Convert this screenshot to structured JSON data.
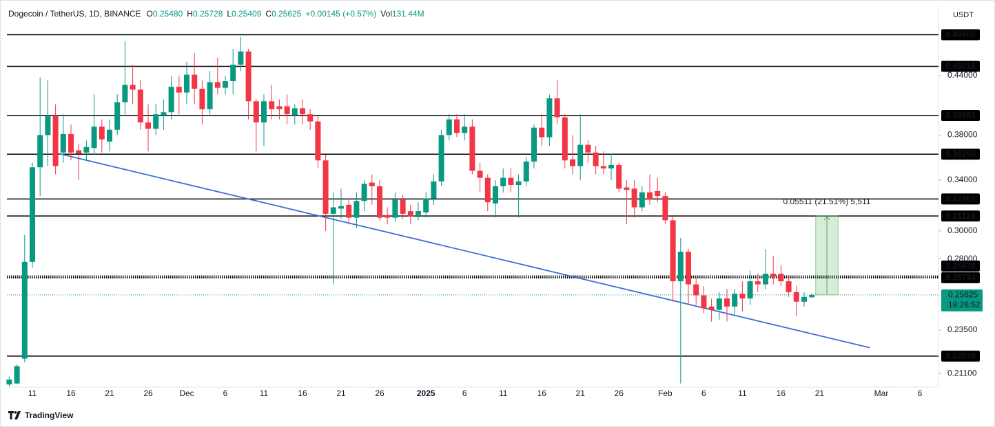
{
  "chart_data": {
    "type": "candlestick",
    "header": {
      "symbol": "Dogecoin / TetherUS, 1D, BINANCE",
      "fields": [
        {
          "key": "O",
          "text": "0.25480"
        },
        {
          "key": "H",
          "text": "0.25728"
        },
        {
          "key": "L",
          "text": "0.25409"
        },
        {
          "key": "C",
          "text": "0.25625"
        },
        {
          "key": "",
          "text": "+0.00145 (+0.57%)"
        },
        {
          "key": "Vol",
          "text": "131.44M"
        }
      ]
    },
    "currency": "USDT",
    "brand": "TradingView",
    "categories": [
      null,
      null,
      null,
      "11",
      null,
      null,
      null,
      null,
      "16",
      null,
      null,
      null,
      null,
      "21",
      null,
      null,
      null,
      null,
      "26",
      null,
      null,
      null,
      null,
      "Dec",
      null,
      null,
      null,
      null,
      "6",
      null,
      null,
      null,
      null,
      "11",
      null,
      null,
      null,
      null,
      "16",
      null,
      null,
      null,
      null,
      "21",
      null,
      null,
      null,
      null,
      "26",
      null,
      null,
      null,
      null,
      null,
      "2025",
      null,
      null,
      null,
      null,
      "6",
      null,
      null,
      null,
      null,
      "11",
      null,
      null,
      null,
      null,
      "16",
      null,
      null,
      null,
      null,
      "21",
      null,
      null,
      null,
      null,
      "26",
      null,
      null,
      null,
      null,
      null,
      "Feb",
      null,
      null,
      null,
      null,
      "6",
      null,
      null,
      null,
      null,
      "11",
      null,
      null,
      null,
      null,
      "16",
      null,
      null,
      null,
      null,
      "21",
      null,
      null,
      null,
      null,
      null,
      null,
      null,
      "Mar",
      null,
      null,
      null,
      null,
      "6"
    ],
    "open": [
      0.2055,
      0.206,
      0.219,
      0.278,
      0.351,
      0.38,
      0.398,
      0.364,
      0.381,
      0.366,
      0.364,
      0.368,
      0.388,
      0.374,
      0.385,
      0.412,
      0.43,
      0.425,
      0.392,
      0.386,
      0.399,
      0.402,
      0.428,
      0.422,
      0.441,
      0.426,
      0.405,
      0.433,
      0.427,
      0.434,
      0.452,
      0.467,
      0.413,
      0.392,
      0.413,
      0.408,
      0.408,
      0.399,
      0.406,
      0.4,
      0.393,
      0.357,
      0.313,
      0.317,
      0.32,
      0.31,
      0.323,
      0.338,
      0.335,
      0.312,
      0.31,
      0.324,
      0.315,
      0.312,
      0.314,
      0.325,
      0.339,
      0.38,
      0.395,
      0.382,
      0.388,
      0.348,
      0.342,
      0.321,
      0.335,
      0.342,
      0.336,
      0.339,
      0.356,
      0.387,
      0.378,
      0.416,
      0.397,
      0.358,
      0.352,
      0.371,
      0.364,
      0.352,
      0.35,
      0.353,
      0.334,
      0.333,
      0.318,
      0.33,
      0.331,
      0.327,
      0.308,
      0.265,
      0.285,
      0.263,
      0.256,
      0.249,
      0.247,
      0.254,
      0.249,
      0.257,
      0.254,
      0.265,
      0.263,
      0.27,
      0.27,
      0.265,
      0.258,
      0.252,
      0.2548,
      null,
      null,
      null,
      null,
      null,
      null,
      null,
      null,
      null,
      null,
      null,
      null,
      null,
      null
    ],
    "high": [
      0.2095,
      0.216,
      0.297,
      0.355,
      0.438,
      0.435,
      0.41,
      0.4,
      0.39,
      0.372,
      0.375,
      0.42,
      0.395,
      0.395,
      0.42,
      0.479,
      0.452,
      0.435,
      0.41,
      0.41,
      0.415,
      0.44,
      0.44,
      0.455,
      0.465,
      0.435,
      0.445,
      0.46,
      0.44,
      0.47,
      0.484,
      0.47,
      0.415,
      0.42,
      0.43,
      0.415,
      0.42,
      0.41,
      0.415,
      0.405,
      0.398,
      0.362,
      0.33,
      0.333,
      0.325,
      0.33,
      0.34,
      0.345,
      0.34,
      0.318,
      0.33,
      0.328,
      0.32,
      0.322,
      0.33,
      0.345,
      0.385,
      0.4,
      0.4,
      0.4,
      0.395,
      0.355,
      0.345,
      0.34,
      0.35,
      0.35,
      0.345,
      0.36,
      0.39,
      0.4,
      0.42,
      0.435,
      0.4,
      0.38,
      0.4,
      0.375,
      0.37,
      0.365,
      0.363,
      0.355,
      0.34,
      0.34,
      0.335,
      0.345,
      0.342,
      0.33,
      0.311,
      0.295,
      0.287,
      0.268,
      0.262,
      0.254,
      0.258,
      0.26,
      0.26,
      0.265,
      0.272,
      0.27,
      0.287,
      0.282,
      0.276,
      0.268,
      0.262,
      0.258,
      0.25728,
      null,
      null,
      null,
      null,
      null,
      null,
      null,
      null,
      null,
      null,
      null,
      null,
      null,
      null
    ],
    "low": [
      0.2045,
      0.2055,
      0.217,
      0.274,
      0.327,
      0.352,
      0.345,
      0.355,
      0.357,
      0.34,
      0.357,
      0.362,
      0.364,
      0.365,
      0.38,
      0.4,
      0.41,
      0.385,
      0.365,
      0.38,
      0.385,
      0.395,
      0.4,
      0.41,
      0.41,
      0.39,
      0.4,
      0.42,
      0.42,
      0.42,
      0.445,
      0.395,
      0.365,
      0.37,
      0.395,
      0.395,
      0.39,
      0.39,
      0.39,
      0.385,
      0.35,
      0.3,
      0.263,
      0.309,
      0.305,
      0.302,
      0.315,
      0.32,
      0.308,
      0.305,
      0.307,
      0.309,
      0.305,
      0.308,
      0.31,
      0.32,
      0.335,
      0.375,
      0.378,
      0.375,
      0.345,
      0.33,
      0.315,
      0.31,
      0.33,
      0.33,
      0.31,
      0.335,
      0.35,
      0.37,
      0.37,
      0.39,
      0.35,
      0.345,
      0.34,
      0.355,
      0.345,
      0.345,
      0.34,
      0.33,
      0.305,
      0.31,
      0.315,
      0.32,
      0.322,
      0.305,
      0.252,
      0.206,
      0.25,
      0.25,
      0.245,
      0.24,
      0.241,
      0.24,
      0.244,
      0.246,
      0.25,
      0.258,
      0.26,
      0.263,
      0.262,
      0.255,
      0.243,
      0.249,
      0.25409,
      null,
      null,
      null,
      null,
      null,
      null,
      null,
      null,
      null,
      null,
      null,
      null,
      null,
      null
    ],
    "close": [
      0.208,
      0.215,
      0.278,
      0.351,
      0.38,
      0.398,
      0.352,
      0.381,
      0.364,
      0.363,
      0.369,
      0.388,
      0.376,
      0.385,
      0.412,
      0.43,
      0.425,
      0.392,
      0.386,
      0.4,
      0.402,
      0.428,
      0.422,
      0.441,
      0.426,
      0.405,
      0.433,
      0.427,
      0.434,
      0.452,
      0.467,
      0.413,
      0.392,
      0.413,
      0.405,
      0.405,
      0.4,
      0.406,
      0.4,
      0.393,
      0.357,
      0.313,
      0.318,
      0.319,
      0.31,
      0.323,
      0.337,
      0.335,
      0.31,
      0.31,
      0.324,
      0.313,
      0.311,
      0.315,
      0.325,
      0.339,
      0.38,
      0.395,
      0.382,
      0.388,
      0.348,
      0.342,
      0.322,
      0.335,
      0.342,
      0.336,
      0.339,
      0.356,
      0.387,
      0.378,
      0.416,
      0.397,
      0.357,
      0.352,
      0.371,
      0.364,
      0.352,
      0.35,
      0.353,
      0.333,
      0.332,
      0.318,
      0.33,
      0.324,
      0.327,
      0.308,
      0.265,
      0.285,
      0.263,
      0.256,
      0.248,
      0.247,
      0.254,
      0.249,
      0.257,
      0.254,
      0.265,
      0.263,
      0.27,
      0.268,
      0.265,
      0.258,
      0.252,
      0.255,
      0.25625,
      null,
      null,
      null,
      null,
      null,
      null,
      null,
      null,
      null,
      null,
      null,
      null,
      null,
      null
    ],
    "up_color": "#089981",
    "down_color": "#f23645",
    "log_scale": true,
    "ylim": [
      0.2045,
      0.523
    ],
    "yticks": [
      {
        "value": 0.44,
        "label": "0.44000"
      },
      {
        "value": 0.38,
        "label": "0.38000"
      },
      {
        "value": 0.34,
        "label": "0.34000"
      },
      {
        "value": 0.3,
        "label": "0.30000"
      },
      {
        "value": 0.28,
        "label": "0.28000"
      },
      {
        "value": 0.235,
        "label": "0.23500"
      },
      {
        "value": 0.211,
        "label": "0.21100"
      }
    ],
    "levels": [
      {
        "value": 0.48665,
        "label": "0.48665"
      },
      {
        "value": 0.45018,
        "label": "0.45018"
      },
      {
        "value": 0.39881,
        "label": "0.39881"
      },
      {
        "value": 0.3625,
        "label": "0.36250"
      },
      {
        "value": 0.32462,
        "label": "0.32462"
      },
      {
        "value": 0.31129,
        "label": "0.31129"
      },
      {
        "value": 0.26838,
        "label": "0.26838",
        "dotted": true
      },
      {
        "value": 0.26734,
        "label": "0.26734",
        "dotted": true
      },
      {
        "value": 0.22039,
        "label": "0.22039"
      }
    ],
    "last_price": 0.25625,
    "countdown": "18:26:52",
    "trendline": {
      "start": [
        6,
        0.3637
      ],
      "end": [
        111.5,
        0.225
      ],
      "color": "#3b6fd9"
    },
    "measure": {
      "start": 104.5,
      "end": 107.4,
      "from": 0.25625,
      "to": 0.31136,
      "label": "0.05511 (21.51%) 5,511",
      "color": "#4caf50"
    }
  }
}
